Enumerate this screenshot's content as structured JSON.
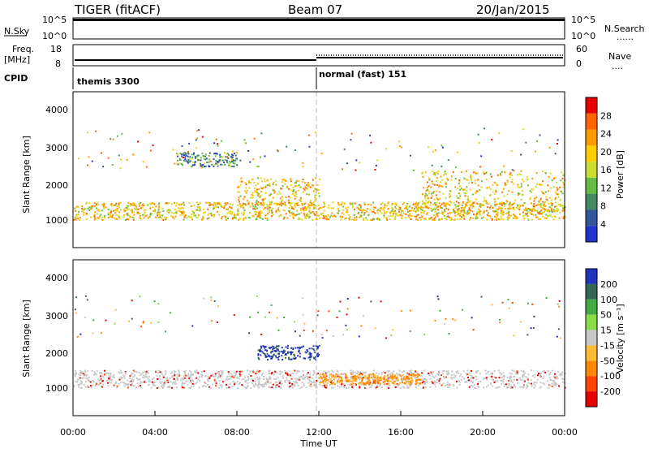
{
  "header": {
    "radar": "TIGER (fitACF)",
    "beam": "Beam 07",
    "date": "20/Jan/2015"
  },
  "nsky_panel": {
    "left_label": "N.Sky",
    "right_label": "N.Search",
    "right_legend": "......",
    "left_ticks": [
      "10^5",
      "10^0"
    ],
    "right_ticks": [
      "10^5",
      "10^0"
    ]
  },
  "freq_panel": {
    "left_label_1": "Freq.",
    "left_label_2": "[MHz]",
    "left_ticks": [
      "18",
      "8"
    ],
    "right_label": "Nave",
    "right_legend": "....",
    "right_ticks": [
      "60",
      "0"
    ]
  },
  "cpid_panel": {
    "label": "CPID",
    "modes": [
      {
        "name": "themis 3300",
        "start_hour": 0
      },
      {
        "name": "normal (fast) 151",
        "start_hour": 12
      }
    ]
  },
  "power_panel": {
    "ylabel": "Slant Range [km]",
    "yticks": [
      "4000",
      "3000",
      "2000",
      "1000"
    ],
    "colorbar_label": "Power [dB]",
    "colorbar_ticks": [
      "28",
      "24",
      "20",
      "16",
      "12",
      "8",
      "4"
    ],
    "colors": [
      "#e60000",
      "#ff6600",
      "#ff9900",
      "#ffcc00",
      "#ccdd33",
      "#66bb44",
      "#448866",
      "#335599",
      "#2233cc"
    ]
  },
  "velocity_panel": {
    "ylabel": "Slant Range [km]",
    "yticks": [
      "4000",
      "3000",
      "2000",
      "1000"
    ],
    "colorbar_label": "Velocity [m s⁻¹]",
    "colorbar_ticks": [
      "200",
      "100",
      "50",
      "15",
      "-15",
      "-50",
      "-100",
      "-200"
    ],
    "colors": [
      "#2233bb",
      "#336655",
      "#44aa44",
      "#88dd44",
      "#c8c8c8",
      "#ffbb33",
      "#ff8800",
      "#ff4400",
      "#e60000"
    ]
  },
  "time_axis": {
    "label": "Time UT",
    "ticks": [
      "00:00",
      "04:00",
      "08:00",
      "12:00",
      "16:00",
      "20:00",
      "00:00"
    ]
  },
  "chart_data": [
    {
      "type": "heatmap",
      "title": "Power [dB]",
      "xlabel": "Time UT",
      "ylabel": "Slant Range [km]",
      "xlim_hours": [
        0,
        24
      ],
      "ylim_km": [
        200,
        4600
      ],
      "clim": [
        0,
        30
      ],
      "bands": [
        {
          "t": [
            0,
            24
          ],
          "range_km": [
            1000,
            1500
          ],
          "level_db": 18
        },
        {
          "t": [
            8,
            12
          ],
          "range_km": [
            1400,
            2200
          ],
          "level_db": 20
        },
        {
          "t": [
            17,
            24
          ],
          "range_km": [
            1200,
            2400
          ],
          "level_db": 18
        },
        {
          "t": [
            5,
            8
          ],
          "range_km": [
            2500,
            2900
          ],
          "level_db": 8
        }
      ]
    },
    {
      "type": "heatmap",
      "title": "Velocity [m s⁻¹]",
      "xlabel": "Time UT",
      "ylabel": "Slant Range [km]",
      "xlim_hours": [
        0,
        24
      ],
      "ylim_km": [
        200,
        4600
      ],
      "clim": [
        -200,
        200
      ],
      "bands": [
        {
          "t": [
            0,
            24
          ],
          "range_km": [
            1000,
            1500
          ],
          "velocity": 0
        },
        {
          "t": [
            9,
            12
          ],
          "range_km": [
            1800,
            2200
          ],
          "velocity": 200
        },
        {
          "t": [
            12,
            17
          ],
          "range_km": [
            1100,
            1400
          ],
          "velocity": -50
        }
      ]
    }
  ]
}
